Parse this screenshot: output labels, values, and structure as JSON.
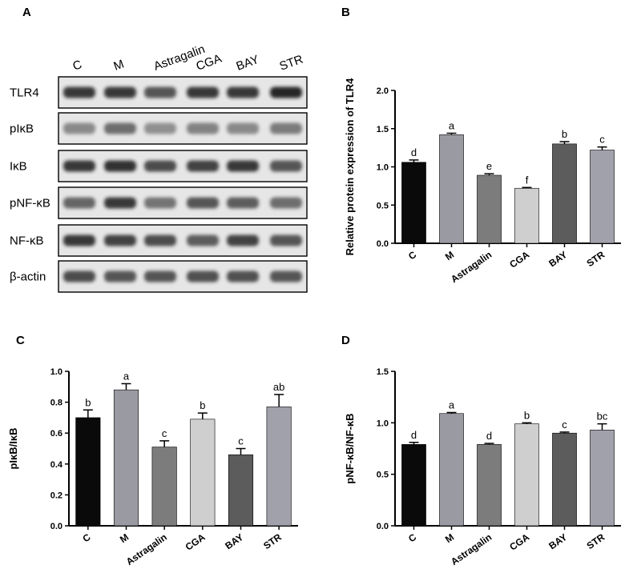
{
  "panels": {
    "A": "A",
    "B": "B",
    "C": "C",
    "D": "D"
  },
  "blot": {
    "lanes": [
      "C",
      "M",
      "Astragalin",
      "CGA",
      "BAY",
      "STR"
    ],
    "rows": [
      "TLR4",
      "pIκB",
      "IκB",
      "pNF-κB",
      "NF-κB",
      "β-actin"
    ]
  },
  "colors": {
    "C": "#0a0a0a",
    "M": "#9a9aa2",
    "Astragalin": "#7c7c7c",
    "CGA": "#cfcfcf",
    "BAY": "#5c5c5c",
    "STR": "#a1a1ab"
  },
  "chart_data": [
    {
      "panel": "B",
      "type": "bar",
      "categories": [
        "C",
        "M",
        "Astragalin",
        "CGA",
        "BAY",
        "STR"
      ],
      "values": [
        1.06,
        1.42,
        0.89,
        0.72,
        1.3,
        1.22
      ],
      "errors": [
        0.03,
        0.02,
        0.02,
        0.01,
        0.03,
        0.04
      ],
      "significance": [
        "d",
        "a",
        "e",
        "f",
        "b",
        "c"
      ],
      "ylabel": "Relative protein expression of TLR4",
      "ylim": [
        0,
        2.0
      ],
      "yticks": [
        "0.0",
        "0.5",
        "1.0",
        "1.5",
        "2.0"
      ]
    },
    {
      "panel": "C",
      "type": "bar",
      "categories": [
        "C",
        "M",
        "Astragalin",
        "CGA",
        "BAY",
        "STR"
      ],
      "values": [
        0.7,
        0.88,
        0.51,
        0.69,
        0.46,
        0.77
      ],
      "errors": [
        0.05,
        0.04,
        0.04,
        0.04,
        0.04,
        0.08
      ],
      "significance": [
        "b",
        "a",
        "c",
        "b",
        "c",
        "ab"
      ],
      "ylabel": "pIκB/IκB",
      "ylim": [
        0,
        1.0
      ],
      "yticks": [
        "0.0",
        "0.2",
        "0.4",
        "0.6",
        "0.8",
        "1.0"
      ]
    },
    {
      "panel": "D",
      "type": "bar",
      "categories": [
        "C",
        "M",
        "Astragalin",
        "CGA",
        "BAY",
        "STR"
      ],
      "values": [
        0.79,
        1.09,
        0.79,
        0.99,
        0.9,
        0.93
      ],
      "errors": [
        0.02,
        0.01,
        0.01,
        0.01,
        0.01,
        0.06
      ],
      "significance": [
        "d",
        "a",
        "d",
        "b",
        "c",
        "bc"
      ],
      "ylabel": "pNF-κB/NF-κB",
      "ylim": [
        0,
        1.5
      ],
      "yticks": [
        "0.0",
        "0.5",
        "1.0",
        "1.5"
      ]
    }
  ]
}
